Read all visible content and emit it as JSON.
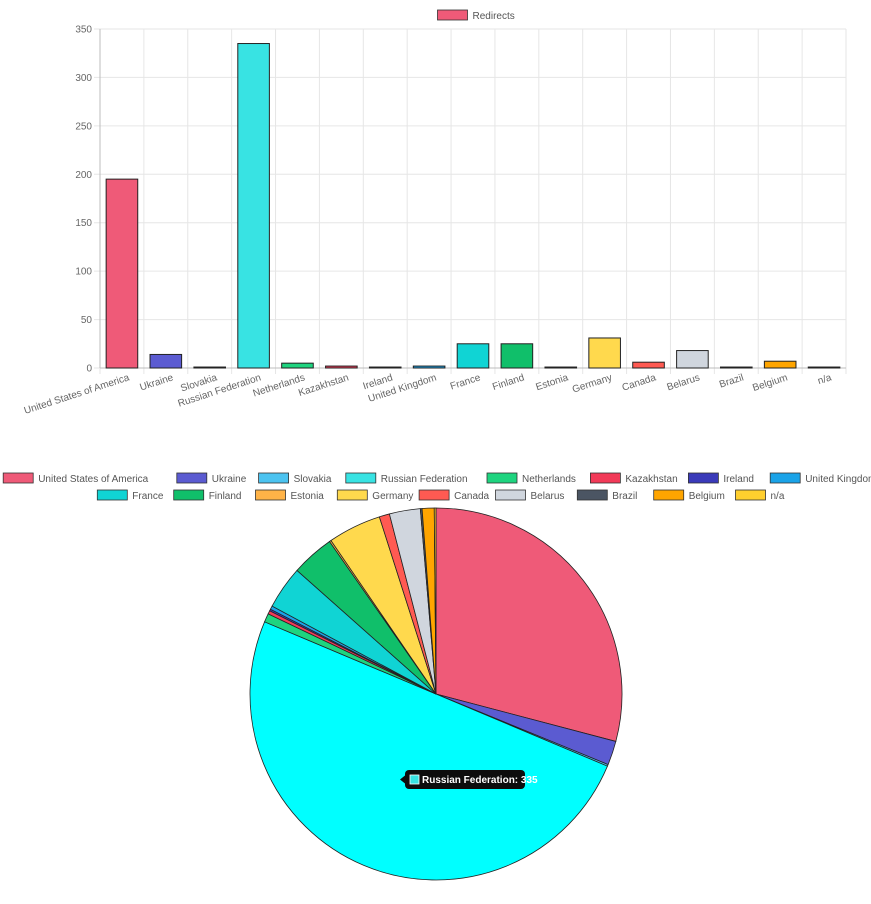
{
  "chart_data": [
    {
      "type": "bar",
      "legend": [
        {
          "label": "Redirects",
          "color": "#ef5a78"
        }
      ],
      "legend_position": "top",
      "categories": [
        "United States of America",
        "Ukraine",
        "Slovakia",
        "Russian Federation",
        "Netherlands",
        "Kazakhstan",
        "Ireland",
        "United Kingdom",
        "France",
        "Finland",
        "Estonia",
        "Germany",
        "Canada",
        "Belarus",
        "Brazil",
        "Belgium",
        "n/a"
      ],
      "series": [
        {
          "name": "Redirects",
          "values": [
            195,
            14,
            1,
            335,
            5,
            2,
            1,
            2,
            25,
            25,
            1,
            31,
            6,
            18,
            1,
            7,
            1
          ]
        }
      ],
      "colors": [
        "#ef5a78",
        "#5b5bd1",
        "#4cc3f0",
        "#38e3e3",
        "#1ed47f",
        "#f23a58",
        "#3a3ab9",
        "#1aa3e8",
        "#10d4d4",
        "#10bf6a",
        "#ffb347",
        "#ffd94d",
        "#ff5a52",
        "#d0d6de",
        "#4b5563",
        "#ffa500",
        "#ffcf2e"
      ],
      "ylim": [
        0,
        350
      ],
      "yticks": [
        0,
        50,
        100,
        150,
        200,
        250,
        300,
        350
      ],
      "grid": true
    },
    {
      "type": "pie",
      "categories": [
        "United States of America",
        "Ukraine",
        "Slovakia",
        "Russian Federation",
        "Netherlands",
        "Kazakhstan",
        "Ireland",
        "United Kingdom",
        "France",
        "Finland",
        "Estonia",
        "Germany",
        "Canada",
        "Belarus",
        "Brazil",
        "Belgium",
        "n/a"
      ],
      "values": [
        195,
        14,
        1,
        335,
        5,
        2,
        1,
        2,
        25,
        25,
        1,
        31,
        6,
        18,
        1,
        7,
        1
      ],
      "colors": [
        "#ef5a78",
        "#5b5bd1",
        "#4cc3f0",
        "#00ffff",
        "#1ed47f",
        "#f23a58",
        "#3a3ab9",
        "#1aa3e8",
        "#10d4d4",
        "#10bf6a",
        "#ffb347",
        "#ffd94d",
        "#ff5a52",
        "#d0d6de",
        "#4b5563",
        "#ffa500",
        "#ffcf2e"
      ],
      "legend_position": "top",
      "tooltip": {
        "text": "Russian Federation: 335",
        "color": "#38e3e3"
      }
    }
  ]
}
